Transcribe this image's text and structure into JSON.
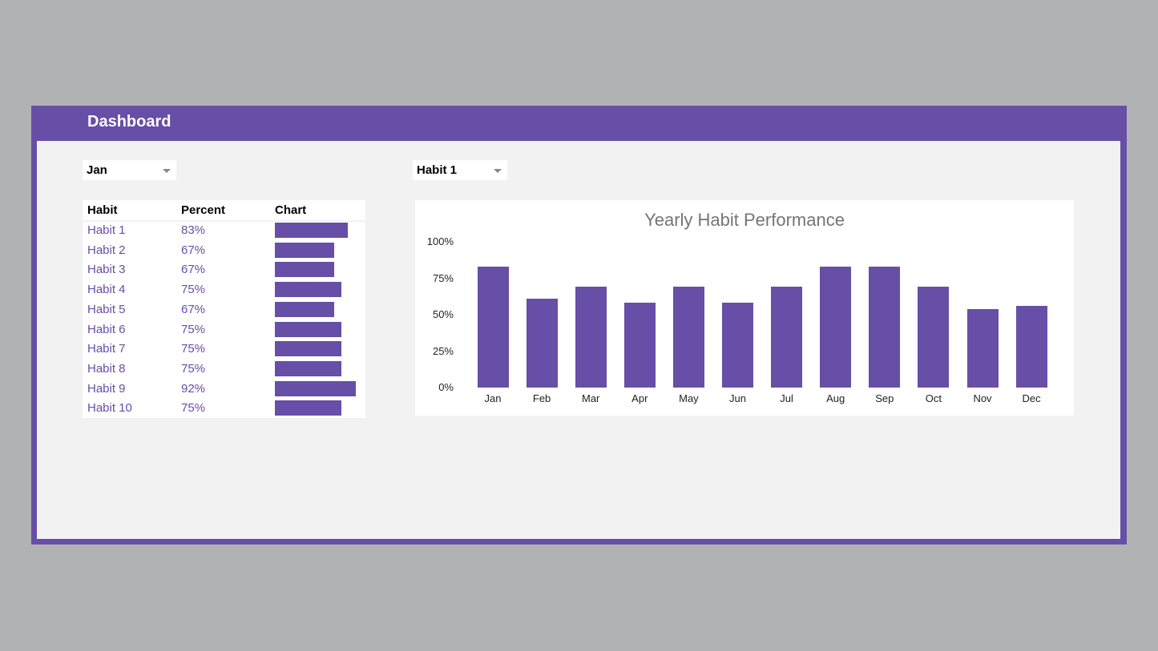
{
  "header": {
    "title": "Dashboard"
  },
  "month_select": {
    "value": "Jan"
  },
  "habit_select": {
    "value": "Habit 1"
  },
  "table": {
    "columns": [
      "Habit",
      "Percent",
      "Chart"
    ],
    "rows": [
      {
        "habit": "Habit 1",
        "percent": "83%",
        "value": 0.83
      },
      {
        "habit": "Habit 2",
        "percent": "67%",
        "value": 0.67
      },
      {
        "habit": "Habit 3",
        "percent": "67%",
        "value": 0.67
      },
      {
        "habit": "Habit 4",
        "percent": "75%",
        "value": 0.75
      },
      {
        "habit": "Habit 5",
        "percent": "67%",
        "value": 0.67
      },
      {
        "habit": "Habit 6",
        "percent": "75%",
        "value": 0.75
      },
      {
        "habit": "Habit 7",
        "percent": "75%",
        "value": 0.75
      },
      {
        "habit": "Habit 8",
        "percent": "75%",
        "value": 0.75
      },
      {
        "habit": "Habit 9",
        "percent": "92%",
        "value": 0.92
      },
      {
        "habit": "Habit 10",
        "percent": "75%",
        "value": 0.75
      }
    ]
  },
  "chart_data": {
    "type": "bar",
    "title": "Yearly Habit Performance",
    "categories": [
      "Jan",
      "Feb",
      "Mar",
      "Apr",
      "May",
      "Jun",
      "Jul",
      "Aug",
      "Sep",
      "Oct",
      "Nov",
      "Dec"
    ],
    "values": [
      0.83,
      0.61,
      0.69,
      0.58,
      0.69,
      0.58,
      0.69,
      0.83,
      0.83,
      0.69,
      0.54,
      0.56
    ],
    "yticks": [
      "0%",
      "25%",
      "50%",
      "75%",
      "100%"
    ],
    "ylim": [
      0,
      1
    ],
    "color": "#674ea7",
    "xlabel": "",
    "ylabel": ""
  }
}
